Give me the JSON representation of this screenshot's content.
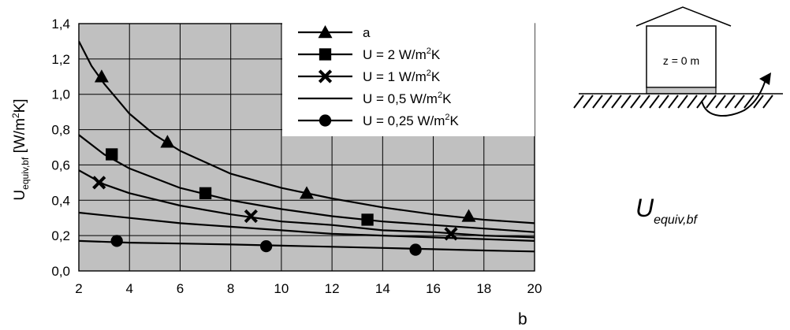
{
  "chart_data": {
    "type": "line",
    "title": "",
    "xlabel": "b",
    "ylabel_main": "U",
    "ylabel_sub": "equiv,bf",
    "ylabel_unit_pre": " [W/m",
    "ylabel_unit_sup": "2",
    "ylabel_unit_post": "K]",
    "xlim": [
      2,
      20
    ],
    "ylim": [
      0,
      1.4
    ],
    "xticks": [
      2,
      4,
      6,
      8,
      10,
      12,
      14,
      16,
      18,
      20
    ],
    "yticks": [
      "0,0",
      "0,2",
      "0,4",
      "0,6",
      "0,8",
      "1,0",
      "1,2",
      "1,4"
    ],
    "ytick_values": [
      0,
      0.2,
      0.4,
      0.6,
      0.8,
      1.0,
      1.2,
      1.4
    ],
    "grid": true,
    "plot_background": "#c0c0c0",
    "legend_position": "top-right",
    "series": [
      {
        "name": "a",
        "marker": "triangle",
        "x": [
          2.0,
          2.5,
          3.0,
          4.0,
          5.0,
          6.0,
          8.0,
          10.0,
          12.0,
          14.0,
          16.0,
          18.0,
          20.0
        ],
        "y": [
          1.3,
          1.16,
          1.06,
          0.89,
          0.77,
          0.68,
          0.55,
          0.47,
          0.41,
          0.36,
          0.32,
          0.29,
          0.27
        ],
        "points": [
          [
            2.9,
            1.1
          ],
          [
            5.5,
            0.73
          ],
          [
            11.0,
            0.44
          ],
          [
            17.4,
            0.31
          ]
        ]
      },
      {
        "name": "U = 2 W/m²K",
        "name_pre": "U = 2 W/m",
        "name_sup": "2",
        "name_post": "K",
        "marker": "square",
        "x": [
          2.0,
          3.0,
          4.0,
          6.0,
          8.0,
          10.0,
          12.0,
          14.0,
          16.0,
          18.0,
          20.0
        ],
        "y": [
          0.77,
          0.66,
          0.58,
          0.47,
          0.4,
          0.35,
          0.31,
          0.28,
          0.26,
          0.24,
          0.22
        ],
        "points": [
          [
            3.3,
            0.66
          ],
          [
            7.0,
            0.44
          ],
          [
            13.4,
            0.29
          ]
        ]
      },
      {
        "name": "U = 1 W/m²K",
        "name_pre": "U = 1 W/m",
        "name_sup": "2",
        "name_post": "K",
        "marker": "cross",
        "x": [
          2.0,
          3.0,
          4.0,
          6.0,
          8.0,
          10.0,
          12.0,
          14.0,
          16.0,
          18.0,
          20.0
        ],
        "y": [
          0.57,
          0.49,
          0.44,
          0.37,
          0.32,
          0.28,
          0.26,
          0.23,
          0.22,
          0.2,
          0.19
        ],
        "points": [
          [
            2.8,
            0.5
          ],
          [
            8.8,
            0.31
          ],
          [
            16.7,
            0.21
          ]
        ]
      },
      {
        "name": "U = 0,5 W/m²K",
        "name_pre": "U = 0,5 W/m",
        "name_sup": "2",
        "name_post": "K",
        "marker": "none",
        "x": [
          2.0,
          4.0,
          6.0,
          8.0,
          10.0,
          12.0,
          14.0,
          16.0,
          18.0,
          20.0
        ],
        "y": [
          0.33,
          0.3,
          0.27,
          0.25,
          0.23,
          0.21,
          0.2,
          0.19,
          0.18,
          0.17
        ],
        "points": []
      },
      {
        "name": "U = 0,25 W/m²K",
        "name_pre": "U = 0,25 W/m",
        "name_sup": "2",
        "name_post": "K",
        "marker": "circle",
        "x": [
          2.0,
          4.0,
          6.0,
          8.0,
          10.0,
          12.0,
          14.0,
          16.0,
          18.0,
          20.0
        ],
        "y": [
          0.17,
          0.16,
          0.155,
          0.15,
          0.143,
          0.137,
          0.13,
          0.123,
          0.116,
          0.11
        ],
        "points": [
          [
            3.5,
            0.17
          ],
          [
            9.4,
            0.14
          ],
          [
            15.3,
            0.12
          ]
        ]
      }
    ]
  },
  "diagram": {
    "floor_label": "z = 0 m",
    "symbol_main": "U",
    "symbol_sub": "equiv,bf"
  }
}
